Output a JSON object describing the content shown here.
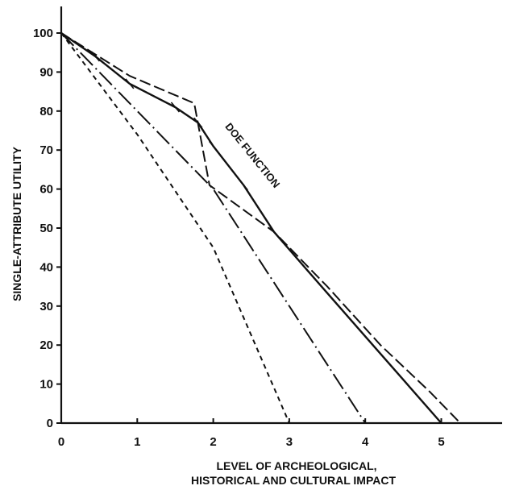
{
  "chart_data": {
    "type": "line",
    "title": "",
    "xlabel": [
      "LEVEL OF ARCHEOLOGICAL,",
      "HISTORICAL AND CULTURAL IMPACT"
    ],
    "ylabel": "SINGLE-ATTRIBUTE UTILITY",
    "xlim": [
      0,
      5.8
    ],
    "ylim": [
      0,
      105
    ],
    "x_ticks": [
      "0",
      "1",
      "2",
      "3",
      "4",
      "5"
    ],
    "y_ticks": [
      "0",
      "10",
      "20",
      "30",
      "40",
      "50",
      "60",
      "70",
      "80",
      "90",
      "100"
    ],
    "grid": false,
    "annotations": [
      {
        "text": "DOE FUNCTION",
        "x": 2.15,
        "y": 76,
        "angle": 51
      }
    ],
    "series": [
      {
        "style": "solid-crossed",
        "x": [
          0,
          0.45,
          0.9,
          1.5,
          1.8,
          2.0,
          2.4,
          2.8,
          3.2,
          3.65,
          4.1,
          4.55,
          5.0
        ],
        "y": [
          100,
          94,
          87,
          81,
          77,
          71,
          61,
          49,
          40,
          30,
          20,
          10,
          0
        ]
      },
      {
        "style": "long-dash",
        "x": [
          0,
          0.9,
          1.75,
          1.95,
          2.8,
          3.5,
          4.2,
          4.85,
          5.25
        ],
        "y": [
          100,
          89,
          82,
          61,
          49,
          35,
          20,
          8,
          0
        ]
      },
      {
        "style": "dash-dot",
        "x": [
          0,
          2.0,
          4.0
        ],
        "y": [
          100,
          60,
          0
        ]
      },
      {
        "style": "short-dash",
        "x": [
          0,
          1.0,
          2.0,
          3.0
        ],
        "y": [
          100,
          74,
          45,
          0
        ]
      }
    ]
  }
}
